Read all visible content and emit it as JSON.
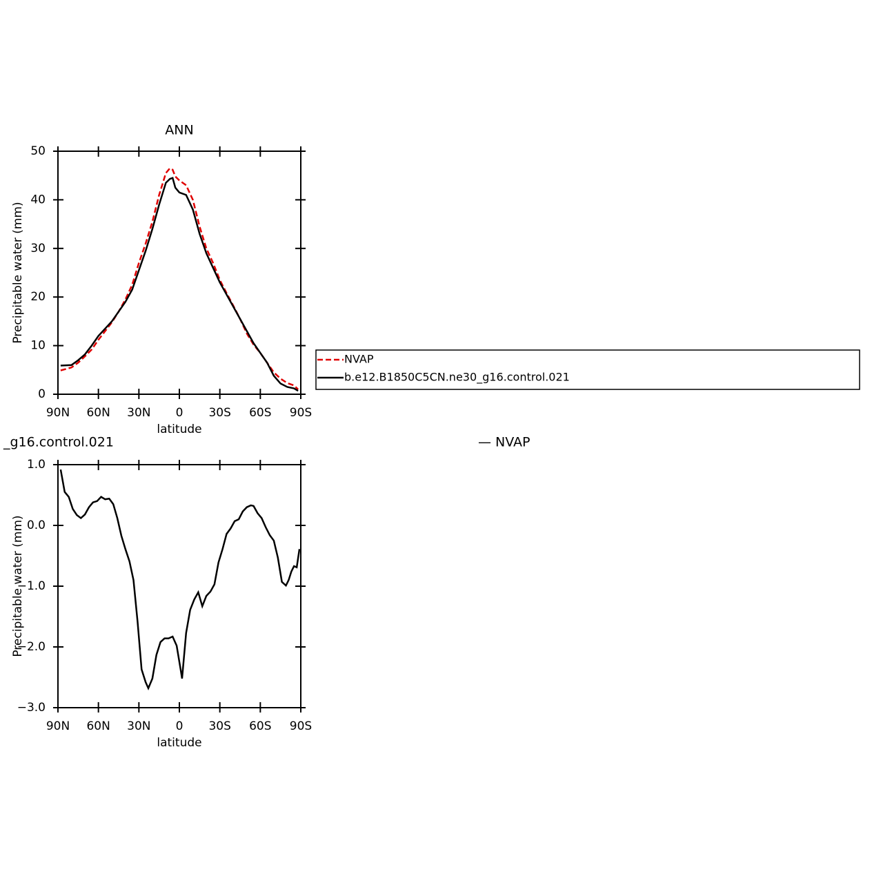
{
  "chart_data": [
    {
      "type": "line",
      "title": "ANN",
      "xlabel": "latitude",
      "ylabel": "Precipitable water (mm)",
      "x": [
        88,
        80,
        75,
        70,
        65,
        60,
        55,
        50,
        45,
        40,
        35,
        30,
        25,
        20,
        15,
        10,
        7,
        5,
        3,
        0,
        -5,
        -10,
        -15,
        -20,
        -25,
        -30,
        -35,
        -40,
        -45,
        -50,
        -55,
        -60,
        -65,
        -70,
        -75,
        -80,
        -85,
        -88
      ],
      "series": [
        {
          "name": "NVAP",
          "color": "#e00000",
          "dashed": true,
          "values": [
            4.9,
            5.5,
            6.5,
            7.8,
            9.2,
            11.2,
            13.0,
            14.8,
            17.0,
            19.5,
            22.5,
            27.0,
            31.0,
            35.5,
            41.0,
            45.5,
            46.5,
            46.2,
            44.8,
            44.0,
            43.0,
            40,
            34.5,
            30,
            27,
            23.5,
            20.8,
            18.2,
            15.5,
            12.5,
            10.2,
            8.5,
            6.5,
            4.5,
            3.2,
            2.3,
            1.8,
            1.0
          ]
        },
        {
          "name": "b.e12.B1850C5CN.ne30_g16.control.021",
          "color": "#000000",
          "dashed": false,
          "values": [
            5.9,
            6.0,
            7.0,
            8.2,
            10.0,
            12.0,
            13.5,
            15.0,
            17.0,
            19.0,
            21.5,
            25.5,
            29.5,
            34.0,
            39.0,
            43.5,
            44.3,
            44.5,
            42.5,
            41.5,
            41.0,
            38,
            33,
            29,
            26,
            23,
            20.5,
            18.0,
            15.5,
            13,
            10.5,
            8.5,
            6.5,
            3.8,
            2.2,
            1.5,
            1.2,
            0.7
          ]
        }
      ],
      "xlim": [
        90,
        -90
      ],
      "xticks": [
        {
          "value": 90,
          "label": "90N"
        },
        {
          "value": 60,
          "label": "60N"
        },
        {
          "value": 30,
          "label": "30N"
        },
        0,
        {
          "value": -30,
          "label": "30S"
        },
        {
          "value": -60,
          "label": "60S"
        },
        {
          "value": -90,
          "label": "90S"
        }
      ],
      "ylim": [
        0,
        50
      ],
      "yticks": [
        0,
        10,
        20,
        30,
        40,
        50
      ],
      "legend": "right"
    },
    {
      "type": "line",
      "title": "_g16.control.021",
      "subtitle": "— NVAP",
      "xlabel": "latitude",
      "ylabel": "Precipitable water (mm)",
      "x": [
        88,
        85,
        82,
        79,
        76,
        73,
        70,
        67,
        64,
        61,
        58,
        55,
        52,
        49,
        46,
        43,
        40,
        37,
        34,
        31,
        28,
        25,
        23,
        20,
        17,
        14,
        11,
        8,
        5,
        2,
        -1,
        -2,
        -5,
        -8,
        -11,
        -14,
        -17,
        -20,
        -23,
        -26,
        -29,
        -32,
        -35,
        -38,
        -41,
        -44,
        -47,
        -50,
        -53,
        -55,
        -58,
        -61,
        -64,
        -67,
        -70,
        -73,
        -76,
        -79,
        -81,
        -83,
        -85,
        -87,
        -89
      ],
      "values": [
        0.92,
        0.55,
        0.47,
        0.27,
        0.17,
        0.12,
        0.18,
        0.3,
        0.38,
        0.4,
        0.47,
        0.43,
        0.44,
        0.35,
        0.12,
        -0.17,
        -0.39,
        -0.59,
        -0.9,
        -1.58,
        -2.37,
        -2.58,
        -2.68,
        -2.52,
        -2.13,
        -1.92,
        -1.86,
        -1.86,
        -1.83,
        -1.98,
        -2.38,
        -2.52,
        -1.77,
        -1.39,
        -1.22,
        -1.1,
        -1.33,
        -1.16,
        -1.09,
        -0.97,
        -0.61,
        -0.39,
        -0.14,
        -0.05,
        0.07,
        0.1,
        0.23,
        0.3,
        0.33,
        0.32,
        0.2,
        0.12,
        -0.03,
        -0.16,
        -0.25,
        -0.53,
        -0.93,
        -0.99,
        -0.9,
        -0.76,
        -0.67,
        -0.69,
        -0.39
      ],
      "color": "#000000",
      "xlim": [
        90,
        -90
      ],
      "xticks": [
        {
          "value": 90,
          "label": "90N"
        },
        {
          "value": 60,
          "label": "60N"
        },
        {
          "value": 30,
          "label": "30N"
        },
        0,
        {
          "value": -30,
          "label": "30S"
        },
        {
          "value": -60,
          "label": "60S"
        },
        {
          "value": -90,
          "label": "90S"
        }
      ],
      "ylim": [
        -3,
        1
      ],
      "yticks": [
        {
          "value": -3,
          "label": "−3.0"
        },
        {
          "value": -2,
          "label": "−2.0"
        },
        {
          "value": -1,
          "label": "−1.0"
        },
        {
          "value": 0,
          "label": "0.0"
        },
        {
          "value": 1,
          "label": "1.0"
        }
      ]
    }
  ]
}
